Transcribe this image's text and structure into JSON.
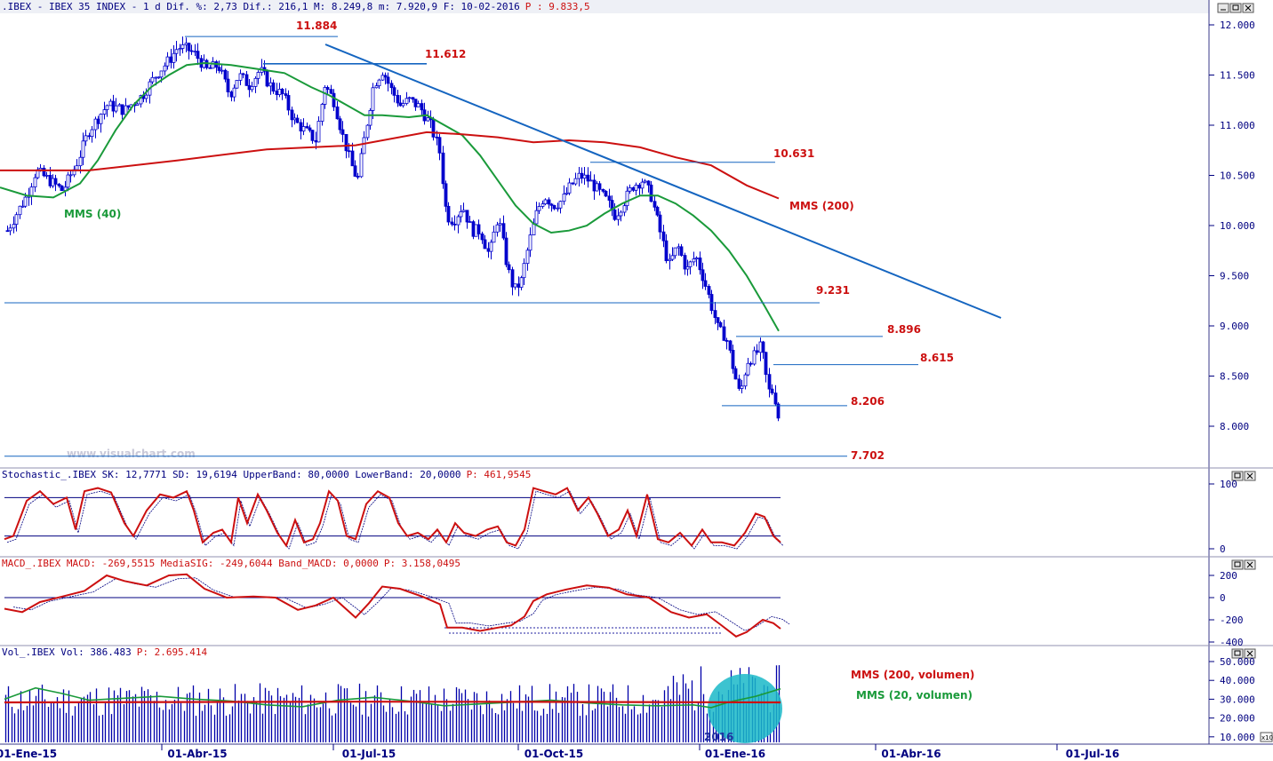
{
  "header": {
    "main": ".IBEX - IBEX 35 INDEX -  1 d Dif. %: 2,73 Dif.: 216,1 M: 8.249,8 m: 7.920,9 F: 10-02-2016",
    "main_p": "P : 9.833,5",
    "stoch_a": "Stochastic_.IBEX SK: 12,7771 SD: 19,6194 UpperBand: 80,0000 LowerBand: 20,0000",
    "stoch_p": "P: 461,9545",
    "macd_a": "MACD_.IBEX MACD: -269,5515 MediaSIG: -249,6044 Band_MACD: 0,0000",
    "macd_p": "P: 3.158,0495",
    "vol_a": "Vol_.IBEX Vol: 386.483",
    "vol_p": "P: 2.695.414"
  },
  "watermark": "www.visualchart.com",
  "colors": {
    "candle": "#0000cc",
    "mms40": "#1a9a3a",
    "mms200": "#cc1010",
    "trend": "#1565c0",
    "label_red": "#cc1010",
    "bubble": "#1ab8c8"
  },
  "chart_data": [
    {
      "type": "line",
      "panel": "price",
      "x_ticks": [
        "01-Ene-15",
        "01-Abr-15",
        "01-Jul-15",
        "01-Oct-15",
        "01-Ene-16",
        "01-Abr-16",
        "01-Jul-16"
      ],
      "y_ticks": [
        "12.000",
        "11.500",
        "11.000",
        "10.500",
        "10.000",
        "9.500",
        "9.000",
        "8.500",
        "8.000"
      ],
      "ylim": [
        7500,
        12150
      ],
      "series": [
        {
          "name": "MMS (40)",
          "points": [
            [
              0,
              10380
            ],
            [
              30,
              10300
            ],
            [
              60,
              10280
            ],
            [
              90,
              10420
            ],
            [
              110,
              10650
            ],
            [
              130,
              10950
            ],
            [
              150,
              11200
            ],
            [
              170,
              11380
            ],
            [
              190,
              11500
            ],
            [
              210,
              11600
            ],
            [
              230,
              11620
            ],
            [
              260,
              11600
            ],
            [
              290,
              11560
            ],
            [
              320,
              11520
            ],
            [
              350,
              11380
            ],
            [
              370,
              11300
            ],
            [
              390,
              11200
            ],
            [
              410,
              11100
            ],
            [
              430,
              11100
            ],
            [
              460,
              11080
            ],
            [
              480,
              11100
            ],
            [
              500,
              11000
            ],
            [
              520,
              10900
            ],
            [
              540,
              10700
            ],
            [
              560,
              10450
            ],
            [
              580,
              10200
            ],
            [
              600,
              10020
            ],
            [
              620,
              9930
            ],
            [
              640,
              9950
            ],
            [
              660,
              10000
            ],
            [
              680,
              10120
            ],
            [
              700,
              10220
            ],
            [
              720,
              10300
            ],
            [
              740,
              10300
            ],
            [
              760,
              10220
            ],
            [
              780,
              10100
            ],
            [
              800,
              9950
            ],
            [
              820,
              9750
            ],
            [
              840,
              9500
            ],
            [
              860,
              9200
            ],
            [
              876,
              8950
            ]
          ]
        },
        {
          "name": "MMS (200)",
          "points": [
            [
              0,
              10550
            ],
            [
              100,
              10550
            ],
            [
              200,
              10650
            ],
            [
              300,
              10760
            ],
            [
              400,
              10800
            ],
            [
              480,
              10930
            ],
            [
              520,
              10910
            ],
            [
              560,
              10880
            ],
            [
              600,
              10830
            ],
            [
              640,
              10850
            ],
            [
              680,
              10830
            ],
            [
              720,
              10780
            ],
            [
              760,
              10680
            ],
            [
              800,
              10600
            ],
            [
              840,
              10400
            ],
            [
              876,
              10270
            ]
          ]
        }
      ],
      "annotations": [
        {
          "text": "MMS (40)"
        },
        {
          "text": "MMS (200)"
        },
        {
          "text": "11.884"
        },
        {
          "text": "11.612"
        },
        {
          "text": "10.631"
        },
        {
          "text": "9.231"
        },
        {
          "text": "8.896"
        },
        {
          "text": "8.615"
        },
        {
          "text": "8.206"
        },
        {
          "text": "7.702"
        }
      ]
    },
    {
      "type": "line",
      "panel": "stochastic",
      "y_ticks": [
        "100",
        "0"
      ],
      "ylim": [
        0,
        100
      ],
      "bands": [
        80,
        20
      ]
    },
    {
      "type": "line",
      "panel": "macd",
      "y_ticks": [
        "200",
        "0",
        "-200",
        "-400"
      ],
      "ylim": [
        -430,
        230
      ]
    },
    {
      "type": "bar",
      "panel": "volume",
      "y_ticks": [
        "50.000",
        "40.000",
        "30.000",
        "20.000",
        "10.000"
      ],
      "ylim": [
        5000,
        52000
      ],
      "annotations": [
        {
          "text": "MMS (200, volumen)"
        },
        {
          "text": "MMS (20, volumen)"
        },
        {
          "text": "2016"
        }
      ],
      "unit": "x10"
    }
  ]
}
